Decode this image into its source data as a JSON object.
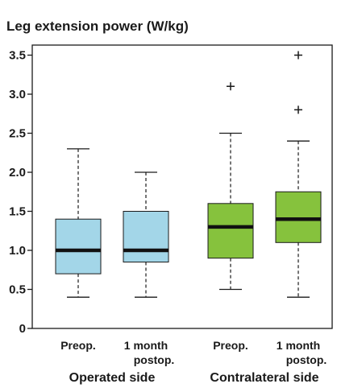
{
  "chart_data": {
    "type": "box",
    "title": "Leg extension power (W/kg)",
    "xlabel": "",
    "ylabel": "",
    "ylim": [
      0,
      3.6
    ],
    "yticks": [
      0,
      0.5,
      1.0,
      1.5,
      2.0,
      2.5,
      3.0,
      3.5
    ],
    "ytick_labels": [
      "0",
      "0.5",
      "1.0",
      "1.5",
      "2.0",
      "2.5",
      "3.0",
      "3.5"
    ],
    "grid": false,
    "categories": [
      {
        "lines": [
          "Preop."
        ],
        "group": 0
      },
      {
        "lines": [
          "1 month",
          "postop."
        ],
        "group": 0
      },
      {
        "lines": [
          "Preop."
        ],
        "group": 1
      },
      {
        "lines": [
          "1 month",
          "postop."
        ],
        "group": 1
      }
    ],
    "groups": [
      "Operated side",
      "Contralateral side"
    ],
    "boxes": [
      {
        "min": 0.4,
        "q1": 0.7,
        "median": 1.0,
        "q3": 1.4,
        "max": 2.3,
        "outliers": [],
        "color": "#a3d6e8"
      },
      {
        "min": 0.4,
        "q1": 0.85,
        "median": 1.0,
        "q3": 1.5,
        "max": 2.0,
        "outliers": [],
        "color": "#a3d6e8"
      },
      {
        "min": 0.5,
        "q1": 0.9,
        "median": 1.3,
        "q3": 1.6,
        "max": 2.5,
        "outliers": [
          3.1
        ],
        "color": "#86c23d"
      },
      {
        "min": 0.4,
        "q1": 1.1,
        "median": 1.4,
        "q3": 1.75,
        "max": 2.4,
        "outliers": [
          2.8,
          3.5
        ],
        "color": "#86c23d"
      }
    ]
  }
}
